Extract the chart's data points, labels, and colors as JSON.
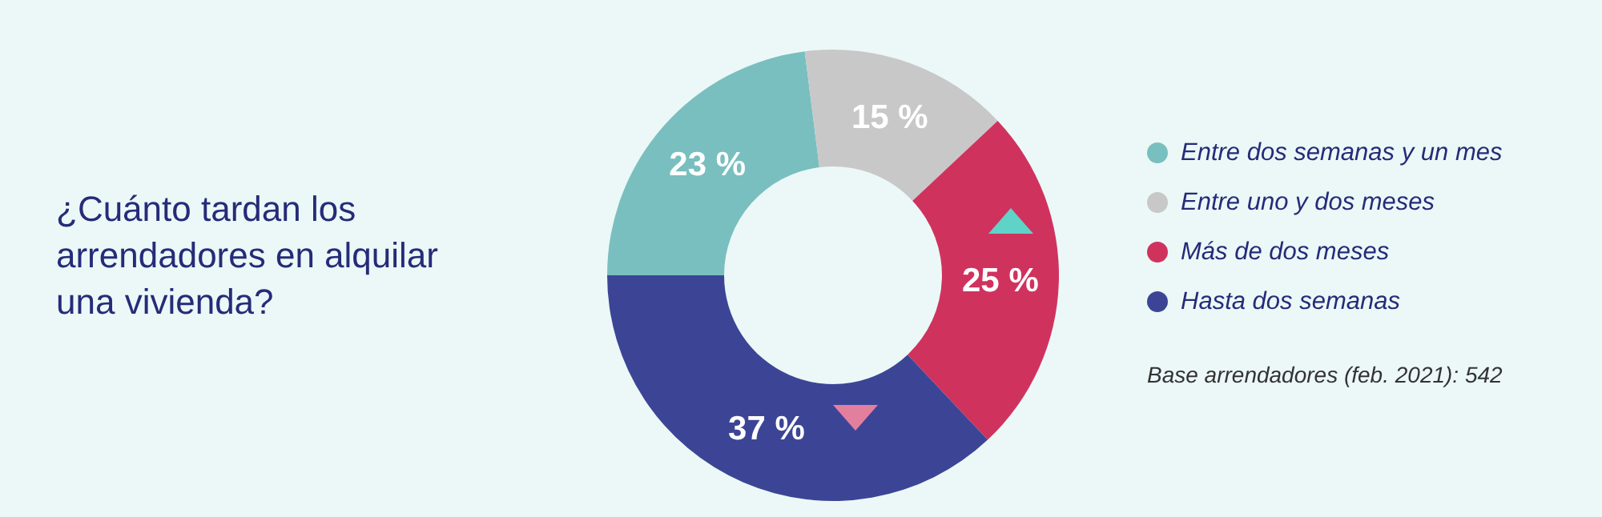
{
  "chart_data": {
    "type": "donut",
    "title": "¿Cuánto tardan los arrendadores en alquilar una vivienda?",
    "categories": [
      "Entre dos semanas y un mes",
      "Entre uno y dos meses",
      "Más de dos meses",
      "Hasta dos semanas"
    ],
    "values": [
      23,
      15,
      25,
      37
    ],
    "colors": [
      "#79bfbf",
      "#c8c8c8",
      "#d0325e",
      "#3c4595"
    ],
    "value_labels": [
      "23 %",
      "15 %",
      "25 %",
      "37 %"
    ],
    "legend": "right",
    "annotations": [
      "Base arrendadores (feb. 2021): 542"
    ]
  }
}
